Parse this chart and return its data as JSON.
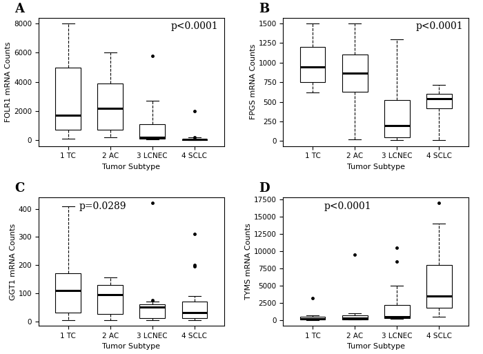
{
  "panels": [
    {
      "label": "A",
      "pvalue": "p<0.0001",
      "pvalue_loc": "upper_right",
      "ylabel": "FOLR1 mRNA Counts",
      "xlabel": "Tumor Subtype",
      "categories": [
        "1 TC",
        "2 AC",
        "3 LCNEC",
        "4 SCLC"
      ],
      "medians": [
        1700,
        2200,
        200,
        50
      ],
      "q1": [
        700,
        700,
        100,
        10
      ],
      "q3": [
        5000,
        3900,
        1100,
        80
      ],
      "whislo": [
        100,
        200,
        50,
        5
      ],
      "whishi": [
        8000,
        6000,
        2700,
        200
      ],
      "fliers": [
        [],
        [],
        [
          5800
        ],
        [
          2000,
          200
        ]
      ],
      "ylim": [
        null,
        null
      ]
    },
    {
      "label": "B",
      "pvalue": "p<0.0001",
      "pvalue_loc": "upper_right",
      "ylabel": "FPGS mRNA Counts",
      "xlabel": "Tumor Subtype",
      "categories": [
        "1 TC",
        "2 AC",
        "3 LCNEC",
        "4 SCLC"
      ],
      "medians": [
        950,
        870,
        200,
        540
      ],
      "q1": [
        750,
        630,
        50,
        420
      ],
      "q3": [
        1200,
        1100,
        520,
        600
      ],
      "whislo": [
        620,
        20,
        10,
        10
      ],
      "whishi": [
        1500,
        1500,
        1300,
        720
      ],
      "fliers": [
        [],
        [],
        [],
        []
      ],
      "ylim": [
        null,
        null
      ]
    },
    {
      "label": "C",
      "pvalue": "p=0.0289",
      "pvalue_loc": "upper_left",
      "ylabel": "GGT1 mRNA Counts",
      "xlabel": "Tumor Subtype",
      "categories": [
        "1 TC",
        "2 AC",
        "3 LCNEC",
        "4 SCLC"
      ],
      "medians": [
        110,
        95,
        50,
        30
      ],
      "q1": [
        30,
        25,
        10,
        10
      ],
      "q3": [
        170,
        130,
        60,
        70
      ],
      "whislo": [
        5,
        5,
        5,
        5
      ],
      "whishi": [
        410,
        155,
        70,
        90
      ],
      "fliers": [
        [],
        [],
        [
          75,
          420
        ],
        [
          195,
          200,
          310
        ]
      ],
      "ylim": [
        null,
        null
      ]
    },
    {
      "label": "D",
      "pvalue": "p<0.0001",
      "pvalue_loc": "upper_left",
      "ylabel": "TYMS mRNA Counts",
      "xlabel": "Tumor Subtype",
      "categories": [
        "1 TC",
        "2 AC",
        "3 LCNEC",
        "4 SCLC"
      ],
      "medians": [
        200,
        300,
        500,
        3500
      ],
      "q1": [
        100,
        150,
        300,
        1800
      ],
      "q3": [
        500,
        700,
        2200,
        8000
      ],
      "whislo": [
        50,
        80,
        200,
        500
      ],
      "whishi": [
        700,
        1000,
        5000,
        14000
      ],
      "fliers": [
        [
          3200
        ],
        [
          9500
        ],
        [
          10500,
          8500
        ],
        [
          17000
        ]
      ],
      "ylim": [
        null,
        null
      ]
    }
  ],
  "bg_color": "white",
  "tick_fontsize": 7.5,
  "ylabel_fontsize": 8,
  "xlabel_fontsize": 8,
  "pvalue_fontsize": 10,
  "panel_label_fontsize": 13
}
